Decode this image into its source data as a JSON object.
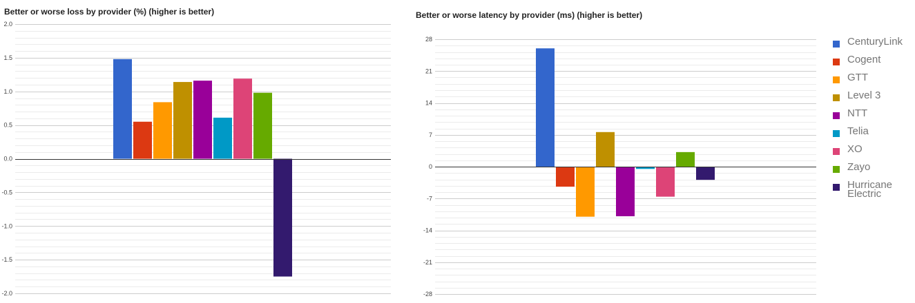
{
  "colors": [
    "#3366cc",
    "#dc3912",
    "#ff9900",
    "#bf9000",
    "#990099",
    "#0099c6",
    "#dd4477",
    "#66aa00",
    "#331a6e"
  ],
  "legend": [
    "CenturyLink",
    "Cogent",
    "GTT",
    "Level 3",
    "NTT",
    "Telia",
    "XO",
    "Zayo",
    "Hurricane Electric"
  ],
  "chart_data": [
    {
      "type": "bar",
      "title": "Better or worse loss by provider (%) (higher is better)",
      "xlabel": "",
      "ylabel": "",
      "ylim": [
        -2.0,
        2.0
      ],
      "yticks": [
        "2.0",
        "1.5",
        "1.0",
        "0.5",
        "0.0",
        "-0.5",
        "-1.0",
        "-1.5",
        "-2.0"
      ],
      "grid": true,
      "series": [
        {
          "name": "CenturyLink",
          "values": [
            1.48
          ]
        },
        {
          "name": "Cogent",
          "values": [
            0.55
          ]
        },
        {
          "name": "GTT",
          "values": [
            0.84
          ]
        },
        {
          "name": "Level 3",
          "values": [
            1.14
          ]
        },
        {
          "name": "NTT",
          "values": [
            1.16
          ]
        },
        {
          "name": "Telia",
          "values": [
            0.61
          ]
        },
        {
          "name": "XO",
          "values": [
            1.19
          ]
        },
        {
          "name": "Zayo",
          "values": [
            0.98
          ]
        },
        {
          "name": "Hurricane Electric",
          "values": [
            -1.75
          ]
        }
      ]
    },
    {
      "type": "bar",
      "title": "Better or worse latency by provider (ms) (higher is better)",
      "xlabel": "",
      "ylabel": "",
      "ylim": [
        -28,
        28
      ],
      "yticks": [
        "28",
        "21",
        "14",
        "7",
        "0",
        "-7",
        "-14",
        "-21",
        "-28"
      ],
      "grid": true,
      "legend_position": "right",
      "series": [
        {
          "name": "CenturyLink",
          "values": [
            26.0
          ]
        },
        {
          "name": "Cogent",
          "values": [
            -4.4
          ]
        },
        {
          "name": "GTT",
          "values": [
            -11.0
          ]
        },
        {
          "name": "Level 3",
          "values": [
            7.6
          ]
        },
        {
          "name": "NTT",
          "values": [
            -10.9
          ]
        },
        {
          "name": "Telia",
          "values": [
            -0.5
          ]
        },
        {
          "name": "XO",
          "values": [
            -6.6
          ]
        },
        {
          "name": "Zayo",
          "values": [
            3.2
          ]
        },
        {
          "name": "Hurricane Electric",
          "values": [
            -2.9
          ]
        }
      ]
    }
  ]
}
